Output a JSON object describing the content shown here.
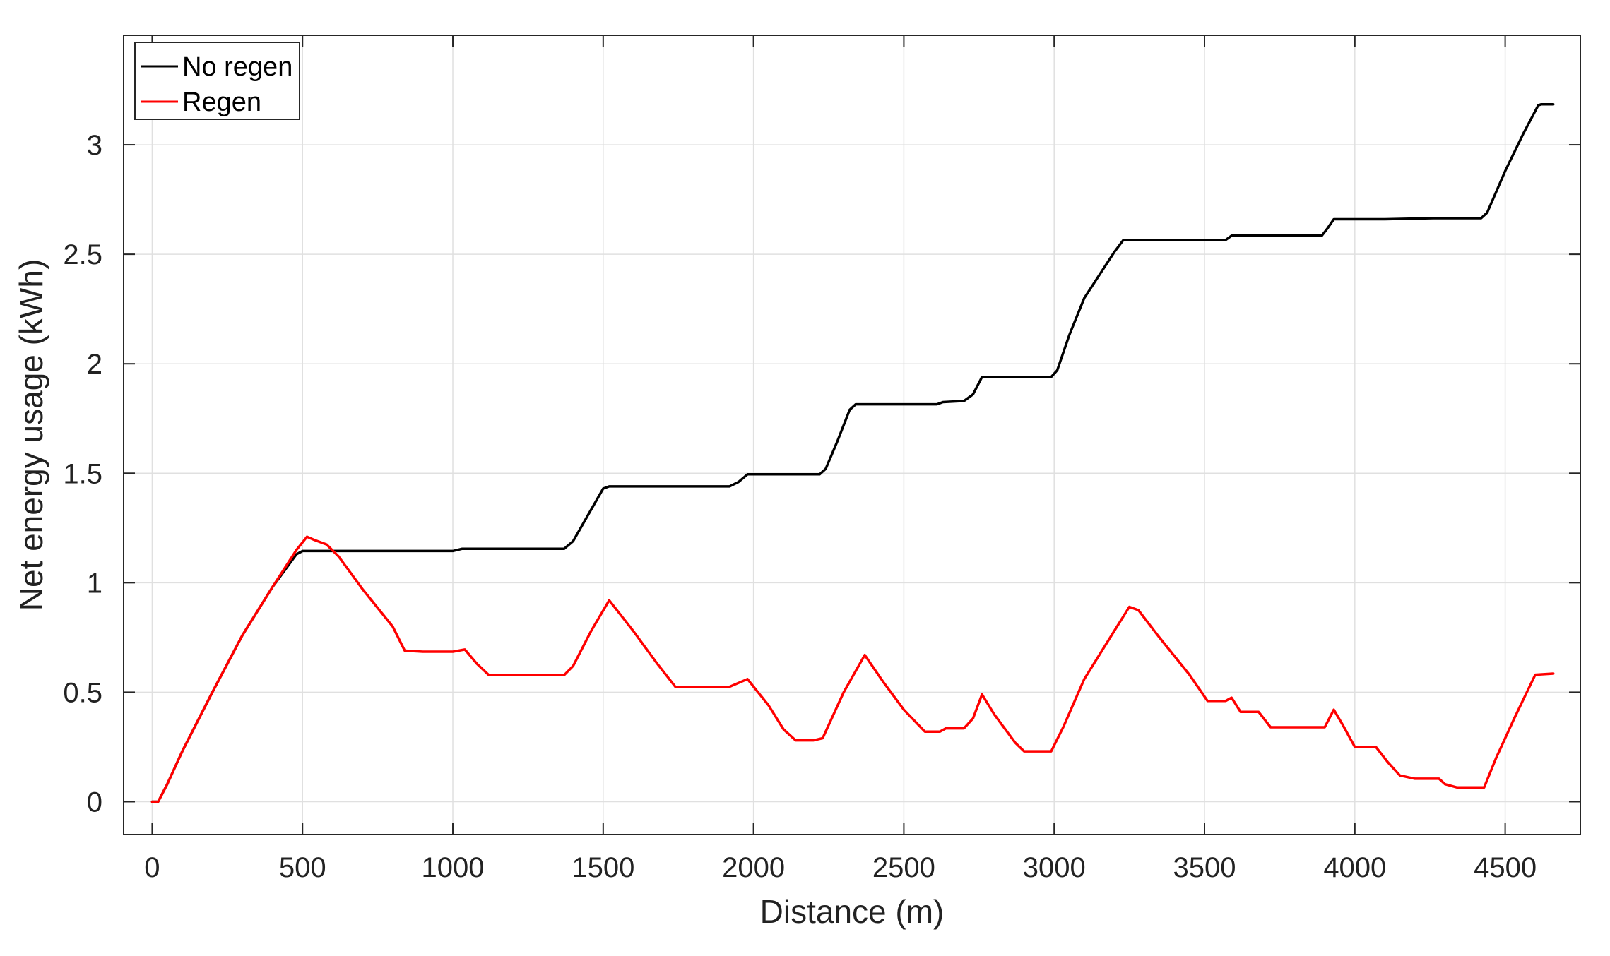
{
  "chart_data": {
    "type": "line",
    "title": "",
    "xlabel": "Distance (m)",
    "ylabel": "Net energy usage (kWh)",
    "xlim": [
      -95,
      4750
    ],
    "ylim": [
      -0.15,
      3.5
    ],
    "xticks": [
      0,
      500,
      1000,
      1500,
      2000,
      2500,
      3000,
      3500,
      4000,
      4500
    ],
    "yticks": [
      0,
      0.5,
      1,
      1.5,
      2,
      2.5,
      3
    ],
    "grid": true,
    "legend": {
      "position": "top-left",
      "entries": [
        "No regen",
        "Regen"
      ]
    },
    "series": [
      {
        "name": "No regen",
        "color": "#000000",
        "points": [
          [
            0,
            0
          ],
          [
            20,
            0.0
          ],
          [
            50,
            0.08
          ],
          [
            100,
            0.23
          ],
          [
            200,
            0.5
          ],
          [
            300,
            0.76
          ],
          [
            400,
            0.98
          ],
          [
            480,
            1.13
          ],
          [
            500,
            1.145
          ],
          [
            600,
            1.145
          ],
          [
            800,
            1.145
          ],
          [
            1000,
            1.145
          ],
          [
            1030,
            1.155
          ],
          [
            1200,
            1.155
          ],
          [
            1370,
            1.155
          ],
          [
            1400,
            1.19
          ],
          [
            1450,
            1.31
          ],
          [
            1500,
            1.43
          ],
          [
            1520,
            1.44
          ],
          [
            1700,
            1.44
          ],
          [
            1920,
            1.44
          ],
          [
            1950,
            1.46
          ],
          [
            1980,
            1.495
          ],
          [
            2100,
            1.495
          ],
          [
            2220,
            1.495
          ],
          [
            2240,
            1.52
          ],
          [
            2280,
            1.65
          ],
          [
            2320,
            1.79
          ],
          [
            2340,
            1.815
          ],
          [
            2500,
            1.815
          ],
          [
            2610,
            1.815
          ],
          [
            2630,
            1.825
          ],
          [
            2700,
            1.83
          ],
          [
            2730,
            1.86
          ],
          [
            2760,
            1.94
          ],
          [
            2900,
            1.94
          ],
          [
            2990,
            1.94
          ],
          [
            3010,
            1.97
          ],
          [
            3050,
            2.13
          ],
          [
            3100,
            2.3
          ],
          [
            3200,
            2.51
          ],
          [
            3230,
            2.565
          ],
          [
            3400,
            2.565
          ],
          [
            3570,
            2.565
          ],
          [
            3590,
            2.585
          ],
          [
            3750,
            2.585
          ],
          [
            3890,
            2.585
          ],
          [
            3910,
            2.62
          ],
          [
            3930,
            2.66
          ],
          [
            4100,
            2.66
          ],
          [
            4260,
            2.665
          ],
          [
            4420,
            2.665
          ],
          [
            4440,
            2.69
          ],
          [
            4500,
            2.88
          ],
          [
            4560,
            3.05
          ],
          [
            4610,
            3.18
          ],
          [
            4620,
            3.185
          ],
          [
            4660,
            3.185
          ]
        ]
      },
      {
        "name": "Regen",
        "color": "#ff0000",
        "points": [
          [
            0,
            0
          ],
          [
            20,
            0.0
          ],
          [
            50,
            0.08
          ],
          [
            100,
            0.23
          ],
          [
            200,
            0.5
          ],
          [
            300,
            0.76
          ],
          [
            400,
            0.98
          ],
          [
            480,
            1.15
          ],
          [
            515,
            1.21
          ],
          [
            540,
            1.195
          ],
          [
            580,
            1.175
          ],
          [
            620,
            1.12
          ],
          [
            700,
            0.97
          ],
          [
            800,
            0.8
          ],
          [
            840,
            0.69
          ],
          [
            900,
            0.685
          ],
          [
            1000,
            0.685
          ],
          [
            1040,
            0.695
          ],
          [
            1080,
            0.63
          ],
          [
            1120,
            0.578
          ],
          [
            1200,
            0.578
          ],
          [
            1370,
            0.578
          ],
          [
            1400,
            0.62
          ],
          [
            1460,
            0.78
          ],
          [
            1520,
            0.92
          ],
          [
            1600,
            0.78
          ],
          [
            1680,
            0.63
          ],
          [
            1740,
            0.525
          ],
          [
            1850,
            0.525
          ],
          [
            1920,
            0.525
          ],
          [
            1980,
            0.56
          ],
          [
            2050,
            0.44
          ],
          [
            2100,
            0.33
          ],
          [
            2140,
            0.28
          ],
          [
            2200,
            0.28
          ],
          [
            2230,
            0.29
          ],
          [
            2300,
            0.5
          ],
          [
            2370,
            0.67
          ],
          [
            2430,
            0.55
          ],
          [
            2500,
            0.42
          ],
          [
            2570,
            0.32
          ],
          [
            2620,
            0.32
          ],
          [
            2640,
            0.335
          ],
          [
            2700,
            0.335
          ],
          [
            2730,
            0.38
          ],
          [
            2760,
            0.49
          ],
          [
            2800,
            0.4
          ],
          [
            2870,
            0.27
          ],
          [
            2900,
            0.23
          ],
          [
            2990,
            0.23
          ],
          [
            3030,
            0.34
          ],
          [
            3100,
            0.56
          ],
          [
            3200,
            0.78
          ],
          [
            3250,
            0.89
          ],
          [
            3280,
            0.875
          ],
          [
            3350,
            0.75
          ],
          [
            3450,
            0.58
          ],
          [
            3510,
            0.46
          ],
          [
            3570,
            0.46
          ],
          [
            3590,
            0.475
          ],
          [
            3620,
            0.41
          ],
          [
            3680,
            0.41
          ],
          [
            3720,
            0.34
          ],
          [
            3800,
            0.34
          ],
          [
            3900,
            0.34
          ],
          [
            3930,
            0.42
          ],
          [
            3960,
            0.35
          ],
          [
            4000,
            0.25
          ],
          [
            4070,
            0.25
          ],
          [
            4110,
            0.18
          ],
          [
            4150,
            0.12
          ],
          [
            4200,
            0.105
          ],
          [
            4280,
            0.105
          ],
          [
            4300,
            0.08
          ],
          [
            4340,
            0.065
          ],
          [
            4430,
            0.065
          ],
          [
            4470,
            0.2
          ],
          [
            4530,
            0.38
          ],
          [
            4600,
            0.58
          ],
          [
            4660,
            0.585
          ]
        ]
      }
    ]
  }
}
